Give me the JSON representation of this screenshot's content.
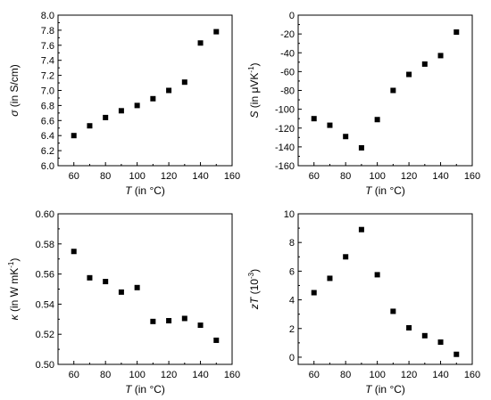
{
  "chart_data": [
    {
      "type": "scatter",
      "x": [
        60,
        70,
        80,
        90,
        100,
        110,
        120,
        130,
        140,
        150
      ],
      "series": [
        {
          "values": [
            6.4,
            6.53,
            6.64,
            6.73,
            6.8,
            6.89,
            7.0,
            7.11,
            7.63,
            7.78
          ]
        }
      ],
      "xlim": [
        50,
        160
      ],
      "ylim": [
        6.0,
        8.0
      ],
      "xticks": [
        60,
        80,
        100,
        120,
        140,
        160
      ],
      "yticks": [
        6.0,
        6.2,
        6.4,
        6.6,
        6.8,
        7.0,
        7.2,
        7.4,
        7.6,
        7.8,
        8.0
      ],
      "xtick_labels": [
        "60",
        "80",
        "100",
        "120",
        "140",
        "160"
      ],
      "ytick_labels": [
        "6.0",
        "6.2",
        "6.4",
        "6.6",
        "6.8",
        "7.0",
        "7.2",
        "7.4",
        "7.6",
        "7.8",
        "8.0"
      ],
      "xlabel": {
        "sym": "T",
        "text": " (in °C)"
      },
      "ylabel": {
        "sym": "σ",
        "text": " (in S/cm)",
        "sup": ""
      },
      "grid": false,
      "marker_color": "#000000"
    },
    {
      "type": "scatter",
      "x": [
        60,
        70,
        80,
        90,
        100,
        110,
        120,
        130,
        140,
        150
      ],
      "series": [
        {
          "values": [
            -110,
            -117,
            -129,
            -141,
            -111,
            -80,
            -63,
            -52,
            -43,
            -18
          ]
        }
      ],
      "xlim": [
        50,
        160
      ],
      "ylim": [
        -160,
        0
      ],
      "xticks": [
        60,
        80,
        100,
        120,
        140,
        160
      ],
      "yticks": [
        0,
        -20,
        -40,
        -60,
        -80,
        -100,
        -120,
        -140,
        -160
      ],
      "xtick_labels": [
        "60",
        "80",
        "100",
        "120",
        "140",
        "160"
      ],
      "ytick_labels": [
        "0",
        "-20",
        "-40",
        "-60",
        "-80",
        "-100",
        "-120",
        "-140",
        "-160"
      ],
      "xlabel": {
        "sym": "T",
        "text": " (in °C)"
      },
      "ylabel": {
        "sym": "S",
        "text": " (in μVK",
        "sup": "-1",
        "close": ")"
      },
      "grid": false,
      "marker_color": "#000000"
    },
    {
      "type": "scatter",
      "x": [
        60,
        70,
        80,
        90,
        100,
        110,
        120,
        130,
        140,
        150
      ],
      "series": [
        {
          "values": [
            0.575,
            0.5575,
            0.555,
            0.548,
            0.551,
            0.5285,
            0.529,
            0.5305,
            0.526,
            0.516
          ]
        }
      ],
      "xlim": [
        50,
        160
      ],
      "ylim": [
        0.5,
        0.6
      ],
      "xticks": [
        60,
        80,
        100,
        120,
        140,
        160
      ],
      "yticks": [
        0.5,
        0.52,
        0.54,
        0.56,
        0.58,
        0.6
      ],
      "xtick_labels": [
        "60",
        "80",
        "100",
        "120",
        "140",
        "160"
      ],
      "ytick_labels": [
        "0.50",
        "0.52",
        "0.54",
        "0.56",
        "0.58",
        "0.60"
      ],
      "xlabel": {
        "sym": "T",
        "text": " (in °C)"
      },
      "ylabel": {
        "sym": "κ",
        "text": " (in W mK",
        "sup": "-1",
        "close": ")"
      },
      "grid": false,
      "marker_color": "#000000"
    },
    {
      "type": "scatter",
      "x": [
        60,
        70,
        80,
        90,
        100,
        110,
        120,
        130,
        140,
        150
      ],
      "series": [
        {
          "values": [
            4.5,
            5.5,
            7.0,
            8.9,
            5.75,
            3.2,
            2.05,
            1.5,
            1.05,
            0.2
          ]
        }
      ],
      "xlim": [
        50,
        160
      ],
      "ylim": [
        -0.5,
        10
      ],
      "xticks": [
        60,
        80,
        100,
        120,
        140,
        160
      ],
      "yticks": [
        0,
        2,
        4,
        6,
        8,
        10
      ],
      "xtick_labels": [
        "60",
        "80",
        "100",
        "120",
        "140",
        "160"
      ],
      "ytick_labels": [
        "0",
        "2",
        "4",
        "6",
        "8",
        "10"
      ],
      "xlabel": {
        "sym": "T",
        "text": " (in °C)"
      },
      "ylabel": {
        "sym": "zT",
        "text": " (10",
        "sup": "-3",
        "close": ")"
      },
      "grid": false,
      "marker_color": "#000000"
    }
  ]
}
